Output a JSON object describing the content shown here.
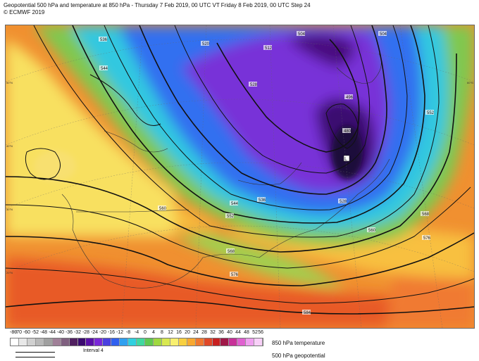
{
  "header": {
    "title": "Geopotential 500 hPa and temperature at 850 hPa - Thursday 7 Feb 2019, 00 UTC VT Friday 8 Feb 2019, 00 UTC Step 24",
    "copyright": "© ECMWF 2019"
  },
  "map": {
    "contour_labels": [
      "536",
      "544",
      "552",
      "560",
      "568",
      "576",
      "584",
      "528",
      "520",
      "512",
      "504",
      "496",
      "488",
      "480"
    ],
    "lat_labels": [
      "20°N",
      "30°N",
      "40°N",
      "50°N",
      "60°N"
    ]
  },
  "legend": {
    "ticks": [
      "-80",
      "-70",
      "-60",
      "-52",
      "-48",
      "-44",
      "-40",
      "-36",
      "-32",
      "-28",
      "-24",
      "-20",
      "-16",
      "-12",
      "-8",
      "-4",
      "0",
      "4",
      "8",
      "12",
      "16",
      "20",
      "24",
      "28",
      "32",
      "36",
      "40",
      "44",
      "48",
      "52",
      "56"
    ],
    "colors": [
      "#ffffff",
      "#e8e8e8",
      "#d0d0d0",
      "#b8b8b8",
      "#a0a0a0",
      "#a08098",
      "#806080",
      "#502060",
      "#3a0a6e",
      "#5a10a8",
      "#7a28d8",
      "#4a40e0",
      "#3060f0",
      "#30a0f0",
      "#30d0e0",
      "#40d8a0",
      "#60c850",
      "#a0d840",
      "#d8e850",
      "#f8f070",
      "#f8d040",
      "#f8a830",
      "#f07830",
      "#e04828",
      "#c82020",
      "#a01848",
      "#c83098",
      "#e060d0",
      "#f0a0f0",
      "#f8d0f8"
    ],
    "interval": "Interval 4",
    "temp_label": "850 hPa temperature",
    "geo_label": "500 hPa geopotential"
  }
}
